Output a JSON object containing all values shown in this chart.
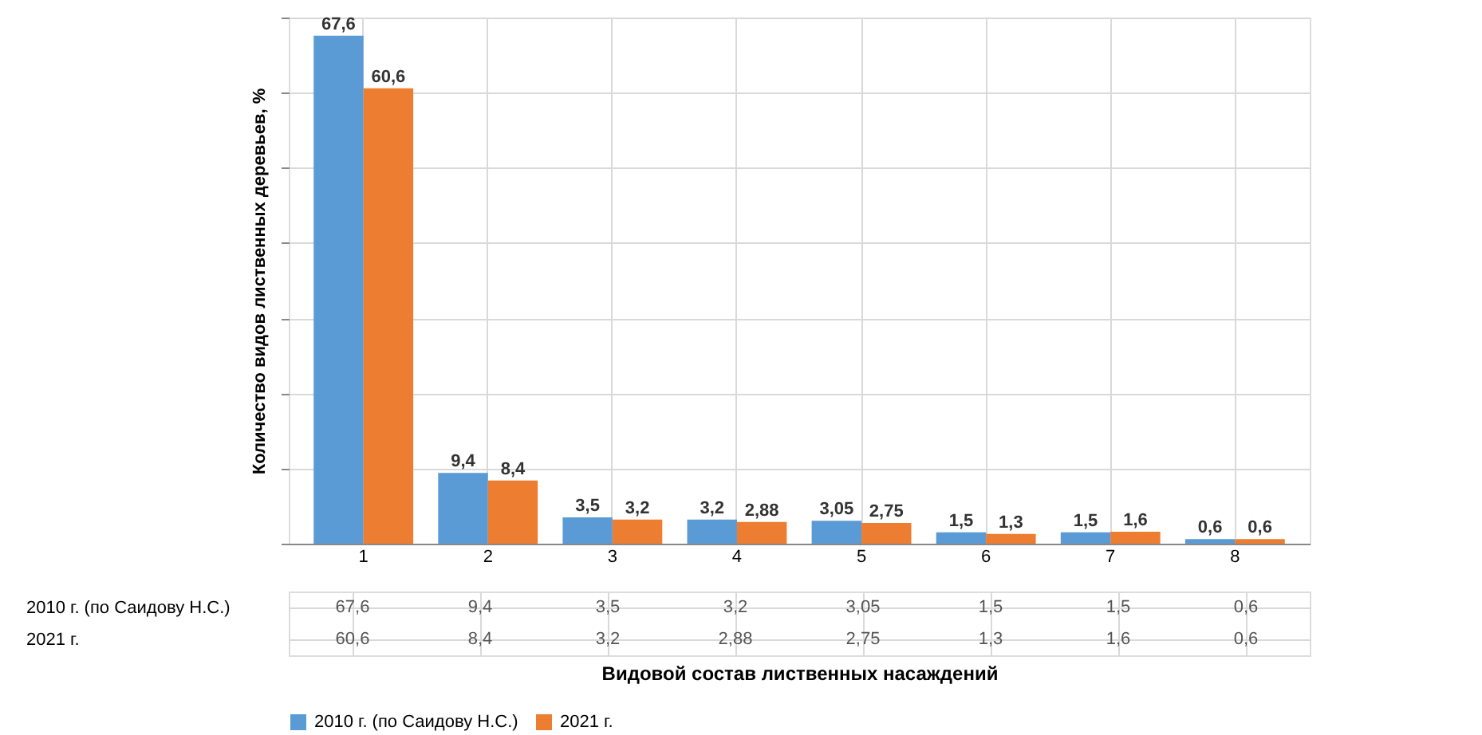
{
  "chart_data": {
    "type": "bar",
    "xlabel": "Видовой состав лиственных насаждений",
    "ylabel": "Количество видов лиственных деревьев, %",
    "categories": [
      "1",
      "2",
      "3",
      "4",
      "5",
      "6",
      "7",
      "8"
    ],
    "series": [
      {
        "name": "2010 г. (по Саидову Н.С.)",
        "color": "#5b9bd5",
        "values": [
          67.6,
          9.4,
          3.5,
          3.2,
          3.05,
          1.5,
          1.5,
          0.6
        ],
        "value_labels": [
          "67,6",
          "9,4",
          "3,5",
          "3,2",
          "3,05",
          "1,5",
          "1,5",
          "0,6"
        ]
      },
      {
        "name": "2021 г.",
        "color": "#ed7d31",
        "values": [
          60.6,
          8.4,
          3.2,
          2.88,
          2.75,
          1.3,
          1.6,
          0.6
        ],
        "value_labels": [
          "60,6",
          "8,4",
          "3,2",
          "2,88",
          "2,75",
          "1,3",
          "1,6",
          "0,6"
        ]
      }
    ],
    "ylim": [
      0,
      70
    ],
    "yticks": [
      {
        "value": 0,
        "label": null
      },
      {
        "value": 10,
        "label": null
      },
      {
        "value": 20,
        "label": null
      },
      {
        "value": 30,
        "label": null
      },
      {
        "value": 40,
        "label": null
      },
      {
        "value": 50,
        "label": null
      },
      {
        "value": 60,
        "label": null
      },
      {
        "value": 70,
        "label": null
      }
    ],
    "tick_labels": "x",
    "grid": true,
    "legend": "bottom"
  }
}
